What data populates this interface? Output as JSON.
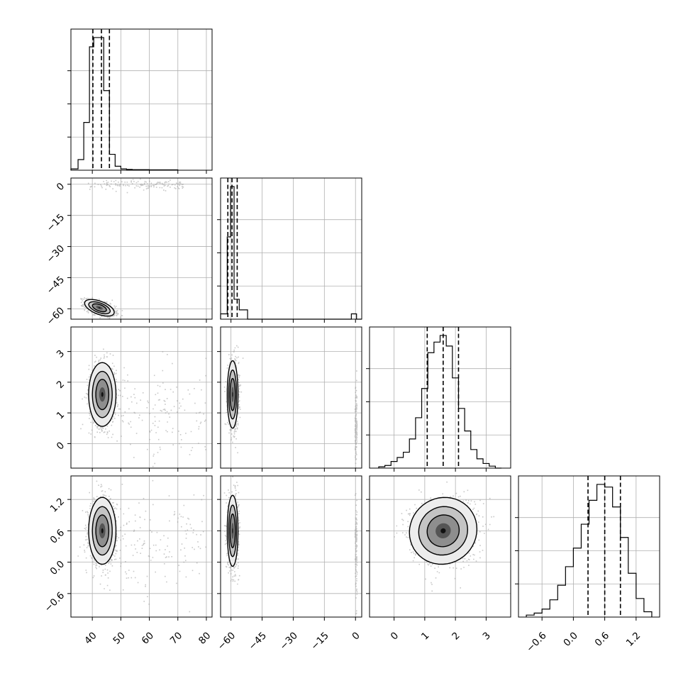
{
  "chart_data": {
    "type": "corner",
    "parameters": [
      {
        "ticks": [
          40,
          50,
          60,
          70,
          80
        ],
        "tick_labels": [
          "40",
          "50",
          "60",
          "70",
          "80"
        ],
        "range": [
          32.5,
          82
        ],
        "quantiles": [
          40.2,
          43.2,
          46.0
        ],
        "hist_x": [
          32.5,
          35,
          37,
          39,
          40.5,
          42.3,
          44,
          46,
          48,
          50,
          52,
          54,
          60,
          70
        ],
        "hist_counts": [
          0.01,
          0.08,
          0.36,
          0.93,
          1.0,
          1.0,
          0.6,
          0.12,
          0.03,
          0.01,
          0.006,
          0.004,
          0.003,
          0.0
        ]
      },
      {
        "ticks": [
          -60,
          -45,
          -30,
          -15,
          0
        ],
        "tick_labels": [
          "−60",
          "−45",
          "−30",
          "−15",
          "0"
        ],
        "range": [
          -65,
          3
        ],
        "quantiles": [
          -61.5,
          -59.5,
          -57.0
        ],
        "hist_x": [
          -65,
          -61.8,
          -60.2,
          -58.5,
          -56,
          -52,
          -30,
          -2,
          0.5,
          3
        ],
        "hist_counts": [
          0.04,
          0.62,
          1.0,
          0.15,
          0.07,
          0.0,
          0.0,
          0.04,
          0.0,
          0.0
        ]
      },
      {
        "ticks": [
          0,
          1,
          2,
          3
        ],
        "tick_labels": [
          "0",
          "1",
          "2",
          "3"
        ],
        "range": [
          -0.8,
          3.8
        ],
        "quantiles": [
          1.08,
          1.6,
          2.1
        ],
        "hist_x": [
          -0.5,
          -0.3,
          -0.1,
          0.1,
          0.3,
          0.5,
          0.7,
          0.9,
          1.1,
          1.3,
          1.5,
          1.7,
          1.9,
          2.1,
          2.3,
          2.5,
          2.7,
          2.9,
          3.1,
          3.3,
          3.5
        ],
        "hist_counts": [
          0.01,
          0.02,
          0.05,
          0.08,
          0.12,
          0.22,
          0.38,
          0.6,
          0.87,
          0.95,
          1.0,
          0.92,
          0.68,
          0.45,
          0.28,
          0.14,
          0.07,
          0.035,
          0.015,
          0.0
        ]
      },
      {
        "ticks": [
          -0.6,
          0.0,
          0.6,
          1.2
        ],
        "tick_labels": [
          "−0.6",
          "0.0",
          "0.6",
          "1.2"
        ],
        "range": [
          -1.05,
          1.65
        ],
        "quantiles": [
          0.28,
          0.6,
          0.9
        ],
        "hist_x": [
          -0.9,
          -0.75,
          -0.6,
          -0.45,
          -0.3,
          -0.15,
          0.0,
          0.15,
          0.3,
          0.45,
          0.6,
          0.75,
          0.9,
          1.05,
          1.2,
          1.35,
          1.5
        ],
        "hist_counts": [
          0.015,
          0.03,
          0.06,
          0.13,
          0.24,
          0.38,
          0.52,
          0.7,
          0.88,
          1.0,
          0.98,
          0.83,
          0.6,
          0.33,
          0.14,
          0.04
        ]
      }
    ],
    "pairs": [
      {
        "row": 1,
        "col": 0,
        "center": [
          42.5,
          -59.5
        ],
        "sd": [
          2.6,
          2.0
        ],
        "rho": -0.55,
        "outliers": {
          "x_range": [
            38,
            72
          ],
          "y": 0,
          "y_sd": 1.2
        }
      },
      {
        "row": 2,
        "col": 0,
        "center": [
          43.5,
          1.6
        ],
        "sd": [
          2.4,
          0.52
        ],
        "rho": 0.0,
        "outliers": {
          "x_range": [
            48,
            80
          ],
          "y": 1.0,
          "y_sd": 0.7
        }
      },
      {
        "row": 2,
        "col": 1,
        "center": [
          -59.2,
          1.6
        ],
        "sd": [
          1.3,
          0.55
        ],
        "rho": 0.0,
        "outliers": {
          "x_range": [
            -0.5,
            0.5
          ],
          "y": 0.6,
          "y_sd": 0.6
        }
      },
      {
        "row": 3,
        "col": 0,
        "center": [
          43.5,
          0.6
        ],
        "sd": [
          2.4,
          0.32
        ],
        "rho": 0.0,
        "outliers": {
          "x_range": [
            48,
            80
          ],
          "y": 0.35,
          "y_sd": 0.45
        }
      },
      {
        "row": 3,
        "col": 1,
        "center": [
          -59.2,
          0.6
        ],
        "sd": [
          1.3,
          0.34
        ],
        "rho": 0.0,
        "outliers": {
          "x_range": [
            -0.5,
            0.5
          ],
          "y": 0.3,
          "y_sd": 0.45
        }
      },
      {
        "row": 3,
        "col": 2,
        "center": [
          1.6,
          0.6
        ],
        "sd": [
          0.55,
          0.32
        ],
        "rho": 0.05,
        "outliers": null
      }
    ]
  }
}
